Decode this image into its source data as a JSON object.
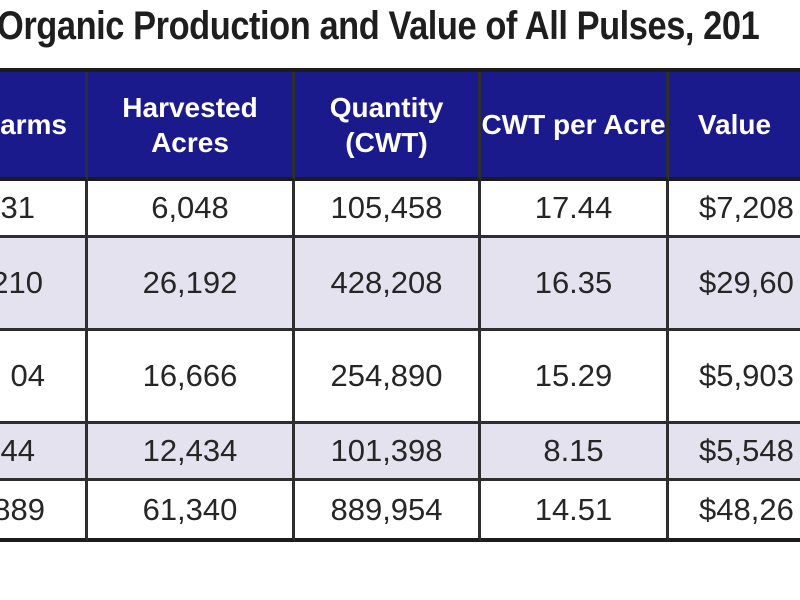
{
  "title": "Organic Production and Value of All Pulses, 201",
  "chart_data": {
    "type": "table",
    "title": "Organic Production and Value of All Pulses, 201",
    "columns": [
      "arms",
      "Harvested Acres",
      "Quantity (CWT)",
      "CWT per Acre",
      "Value"
    ],
    "rows": [
      [
        "31",
        "6,048",
        "105,458",
        "17.44",
        "$7,208"
      ],
      [
        "210",
        "26,192",
        "428,208",
        "16.35",
        "$29,60"
      ],
      [
        "04",
        "16,666",
        "254,890",
        "15.29",
        "$5,903"
      ],
      [
        "44",
        "12,434",
        "101,398",
        "8.15",
        "$5,548"
      ],
      [
        "889",
        "61,340",
        "889,954",
        "14.51",
        "$48,26"
      ]
    ],
    "notes": {
      "crop": "image is cropped: first column and value column are partially cut off at the left/right edges",
      "row_striping": "rows alternate white and lavender"
    }
  },
  "colors": {
    "header_bg": "#1b1a8c",
    "header_text": "#ffffff",
    "alt_row_bg": "#e4e2ef",
    "border": "#2e2e2e",
    "outer_border": "#1c1c1c",
    "cell_text": "#262626",
    "title_text": "#1e1e1e",
    "page_bg": "#ffffff"
  }
}
